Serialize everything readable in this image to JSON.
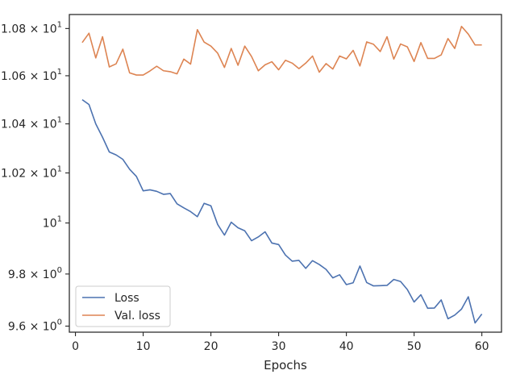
{
  "chart_data": {
    "type": "line",
    "xlabel": "Epochs",
    "ylabel": "",
    "xlim": [
      -0.9,
      62.9
    ],
    "ylim": [
      9.577,
      10.86
    ],
    "yscale": "log",
    "xticks": [
      0,
      10,
      20,
      30,
      40,
      50,
      60
    ],
    "xtick_labels": [
      "0",
      "10",
      "20",
      "30",
      "40",
      "50",
      "60"
    ],
    "yticks": [
      9.6,
      9.8,
      10,
      10.2,
      10.4,
      10.6,
      10.8
    ],
    "ytick_labels": [
      {
        "mantissa": "9.6",
        "base": "10",
        "exp": "0"
      },
      {
        "mantissa": "9.8",
        "base": "10",
        "exp": "0"
      },
      {
        "mantissa": "",
        "base": "10",
        "exp": "1"
      },
      {
        "mantissa": "1.02",
        "base": "10",
        "exp": "1"
      },
      {
        "mantissa": "1.04",
        "base": "10",
        "exp": "1"
      },
      {
        "mantissa": "1.06",
        "base": "10",
        "exp": "1"
      },
      {
        "mantissa": "1.08",
        "base": "10",
        "exp": "1"
      }
    ],
    "grid": false,
    "legend_position": "lower-left",
    "x": [
      1,
      2,
      3,
      4,
      5,
      6,
      7,
      8,
      9,
      10,
      11,
      12,
      13,
      14,
      15,
      16,
      17,
      18,
      19,
      20,
      21,
      22,
      23,
      24,
      25,
      26,
      27,
      28,
      29,
      30,
      31,
      32,
      33,
      34,
      35,
      36,
      37,
      38,
      39,
      40,
      41,
      42,
      43,
      44,
      45,
      46,
      47,
      48,
      49,
      50,
      51,
      52,
      53,
      54,
      55,
      56,
      57,
      58,
      59,
      60
    ],
    "series": [
      {
        "name": "Loss",
        "color": "#4c72b0",
        "values": [
          10.5,
          10.48,
          10.4,
          10.345,
          10.285,
          10.273,
          10.255,
          10.215,
          10.186,
          10.128,
          10.132,
          10.126,
          10.114,
          10.117,
          10.076,
          10.06,
          10.045,
          10.025,
          10.078,
          10.068,
          9.994,
          9.952,
          10.003,
          9.981,
          9.969,
          9.93,
          9.945,
          9.965,
          9.921,
          9.915,
          9.874,
          9.85,
          9.853,
          9.822,
          9.852,
          9.837,
          9.818,
          9.785,
          9.797,
          9.759,
          9.766,
          9.831,
          9.767,
          9.754,
          9.755,
          9.756,
          9.779,
          9.771,
          9.74,
          9.692,
          9.72,
          9.668,
          9.669,
          9.7,
          9.628,
          9.642,
          9.665,
          9.712,
          9.612,
          9.646
        ]
      },
      {
        "name": "Val. loss",
        "color": "#dd8452",
        "values": [
          10.74,
          10.78,
          10.675,
          10.765,
          10.637,
          10.65,
          10.712,
          10.612,
          10.603,
          10.603,
          10.62,
          10.64,
          10.621,
          10.617,
          10.608,
          10.67,
          10.649,
          10.795,
          10.742,
          10.725,
          10.695,
          10.635,
          10.715,
          10.644,
          10.725,
          10.681,
          10.621,
          10.646,
          10.659,
          10.625,
          10.665,
          10.653,
          10.63,
          10.653,
          10.683,
          10.615,
          10.651,
          10.628,
          10.683,
          10.671,
          10.707,
          10.641,
          10.743,
          10.733,
          10.702,
          10.765,
          10.67,
          10.734,
          10.722,
          10.66,
          10.74,
          10.673,
          10.673,
          10.688,
          10.757,
          10.715,
          10.809,
          10.776,
          10.73,
          10.73
        ]
      }
    ]
  }
}
